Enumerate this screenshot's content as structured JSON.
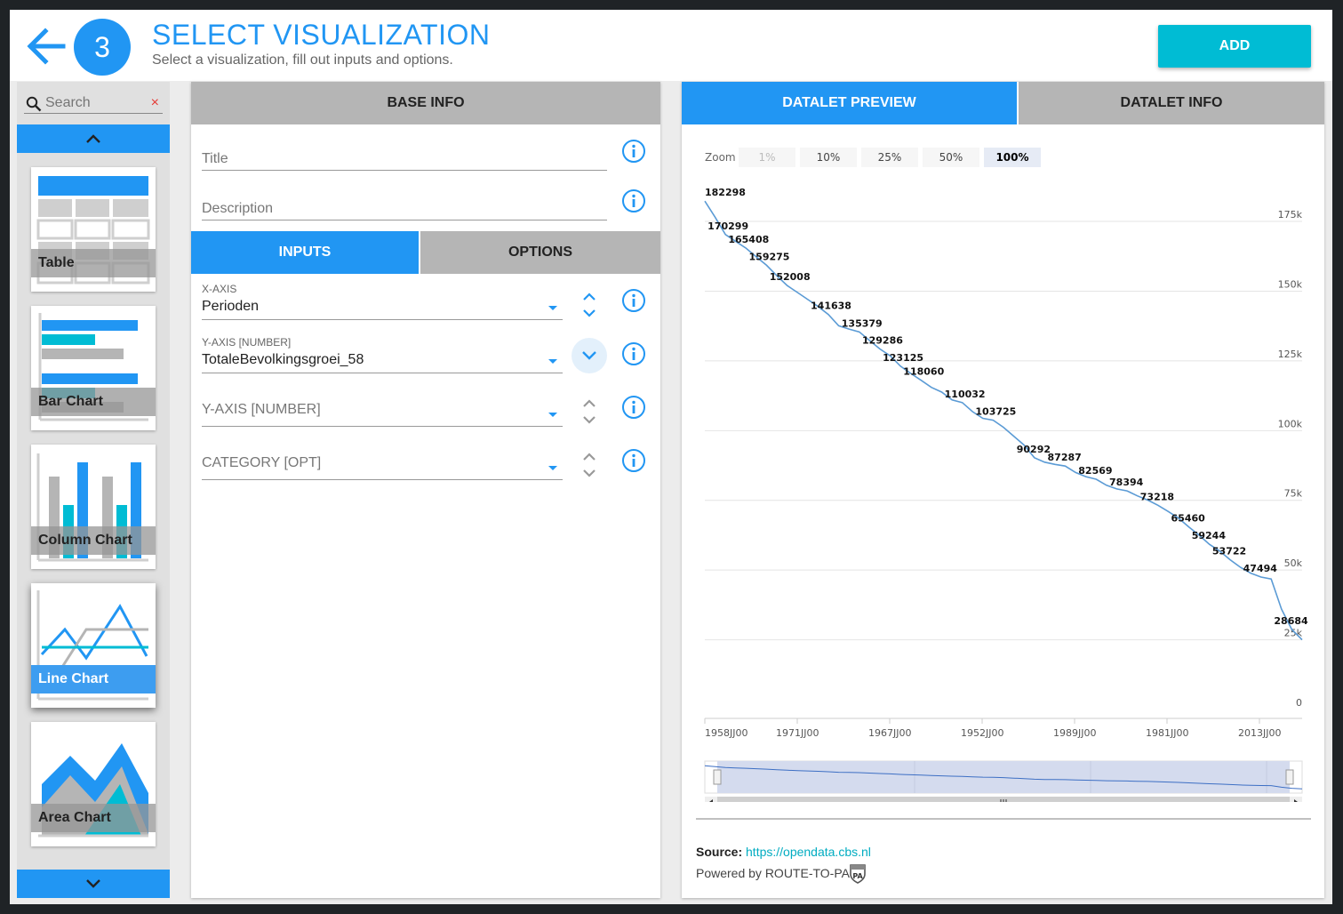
{
  "header": {
    "step": "3",
    "title": "SELECT VISUALIZATION",
    "subtitle": "Select a visualization, fill out inputs and options.",
    "add_label": "ADD"
  },
  "picker": {
    "search_placeholder": "Search",
    "clear": "×",
    "cards": [
      {
        "label": "Table"
      },
      {
        "label": "Bar Chart"
      },
      {
        "label": "Column Chart"
      },
      {
        "label": "Line Chart",
        "selected": true
      },
      {
        "label": "Area Chart"
      }
    ]
  },
  "config": {
    "base_info": "BASE INFO",
    "title_label": "Title",
    "description_label": "Description",
    "tabs": [
      "INPUTS",
      "OPTIONS"
    ],
    "xaxis": {
      "label": "X-AXIS",
      "value": "Perioden"
    },
    "yaxis": {
      "label": "Y-AXIS [NUMBER]",
      "value": "TotaleBevolkingsgroei_58"
    },
    "yaxis2_placeholder": "Y-AXIS [NUMBER]",
    "category_placeholder": "CATEGORY [OPT]"
  },
  "preview": {
    "tabs": [
      "DATALET PREVIEW",
      "DATALET INFO"
    ],
    "zoom_label": "Zoom",
    "zoom_options": [
      "1%",
      "10%",
      "25%",
      "50%",
      "100%"
    ],
    "zoom_selected": "100%",
    "source_label": "Source:",
    "source_url": "https://opendata.cbs.nl",
    "powered_by": "Powered by ROUTE-TO-PA",
    "badge_text": "PA"
  },
  "colors": {
    "accent": "#2196f3",
    "add_button": "#00bcd4",
    "tab_inactive": "#b5b5b5",
    "line": "#5b9bd5"
  },
  "chart_data": {
    "type": "line",
    "ylim": [
      0,
      190000
    ],
    "y_ticks": [
      "0",
      "25k",
      "50k",
      "75k",
      "100k",
      "125k",
      "150k",
      "175k"
    ],
    "x_tick_labels": [
      "1958JJ00",
      "1971JJ00",
      "1967JJ00",
      "1952JJ00",
      "1989JJ00",
      "1981JJ00",
      "2013JJ00"
    ],
    "values": [
      182298,
      176500,
      170299,
      167800,
      165408,
      162300,
      159275,
      155500,
      152008,
      149500,
      147000,
      144500,
      141638,
      137600,
      136400,
      135379,
      132300,
      129286,
      126800,
      123125,
      120500,
      118060,
      115500,
      113800,
      111000,
      110032,
      106800,
      104400,
      103725,
      101200,
      98000,
      94800,
      90292,
      88700,
      87900,
      87287,
      85000,
      83500,
      82569,
      80400,
      79100,
      78394,
      76600,
      75100,
      73218,
      71000,
      68600,
      65460,
      62500,
      59244,
      56800,
      53722,
      51000,
      48900,
      47494,
      46800,
      36000,
      28684,
      25000
    ],
    "data_labels": [
      {
        "index": 0,
        "text": "182298"
      },
      {
        "index": 2,
        "text": "170299"
      },
      {
        "index": 4,
        "text": "165408"
      },
      {
        "index": 6,
        "text": "159275"
      },
      {
        "index": 8,
        "text": "152008"
      },
      {
        "index": 12,
        "text": "141638"
      },
      {
        "index": 15,
        "text": "135379"
      },
      {
        "index": 17,
        "text": "129286"
      },
      {
        "index": 19,
        "text": "123125"
      },
      {
        "index": 21,
        "text": "118060"
      },
      {
        "index": 25,
        "text": "110032"
      },
      {
        "index": 28,
        "text": "103725"
      },
      {
        "index": 32,
        "text": "90292"
      },
      {
        "index": 35,
        "text": "87287"
      },
      {
        "index": 38,
        "text": "82569"
      },
      {
        "index": 41,
        "text": "78394"
      },
      {
        "index": 44,
        "text": "73218"
      },
      {
        "index": 47,
        "text": "65460"
      },
      {
        "index": 49,
        "text": "59244"
      },
      {
        "index": 51,
        "text": "53722"
      },
      {
        "index": 54,
        "text": "47494"
      },
      {
        "index": 57,
        "text": "28684"
      }
    ]
  }
}
